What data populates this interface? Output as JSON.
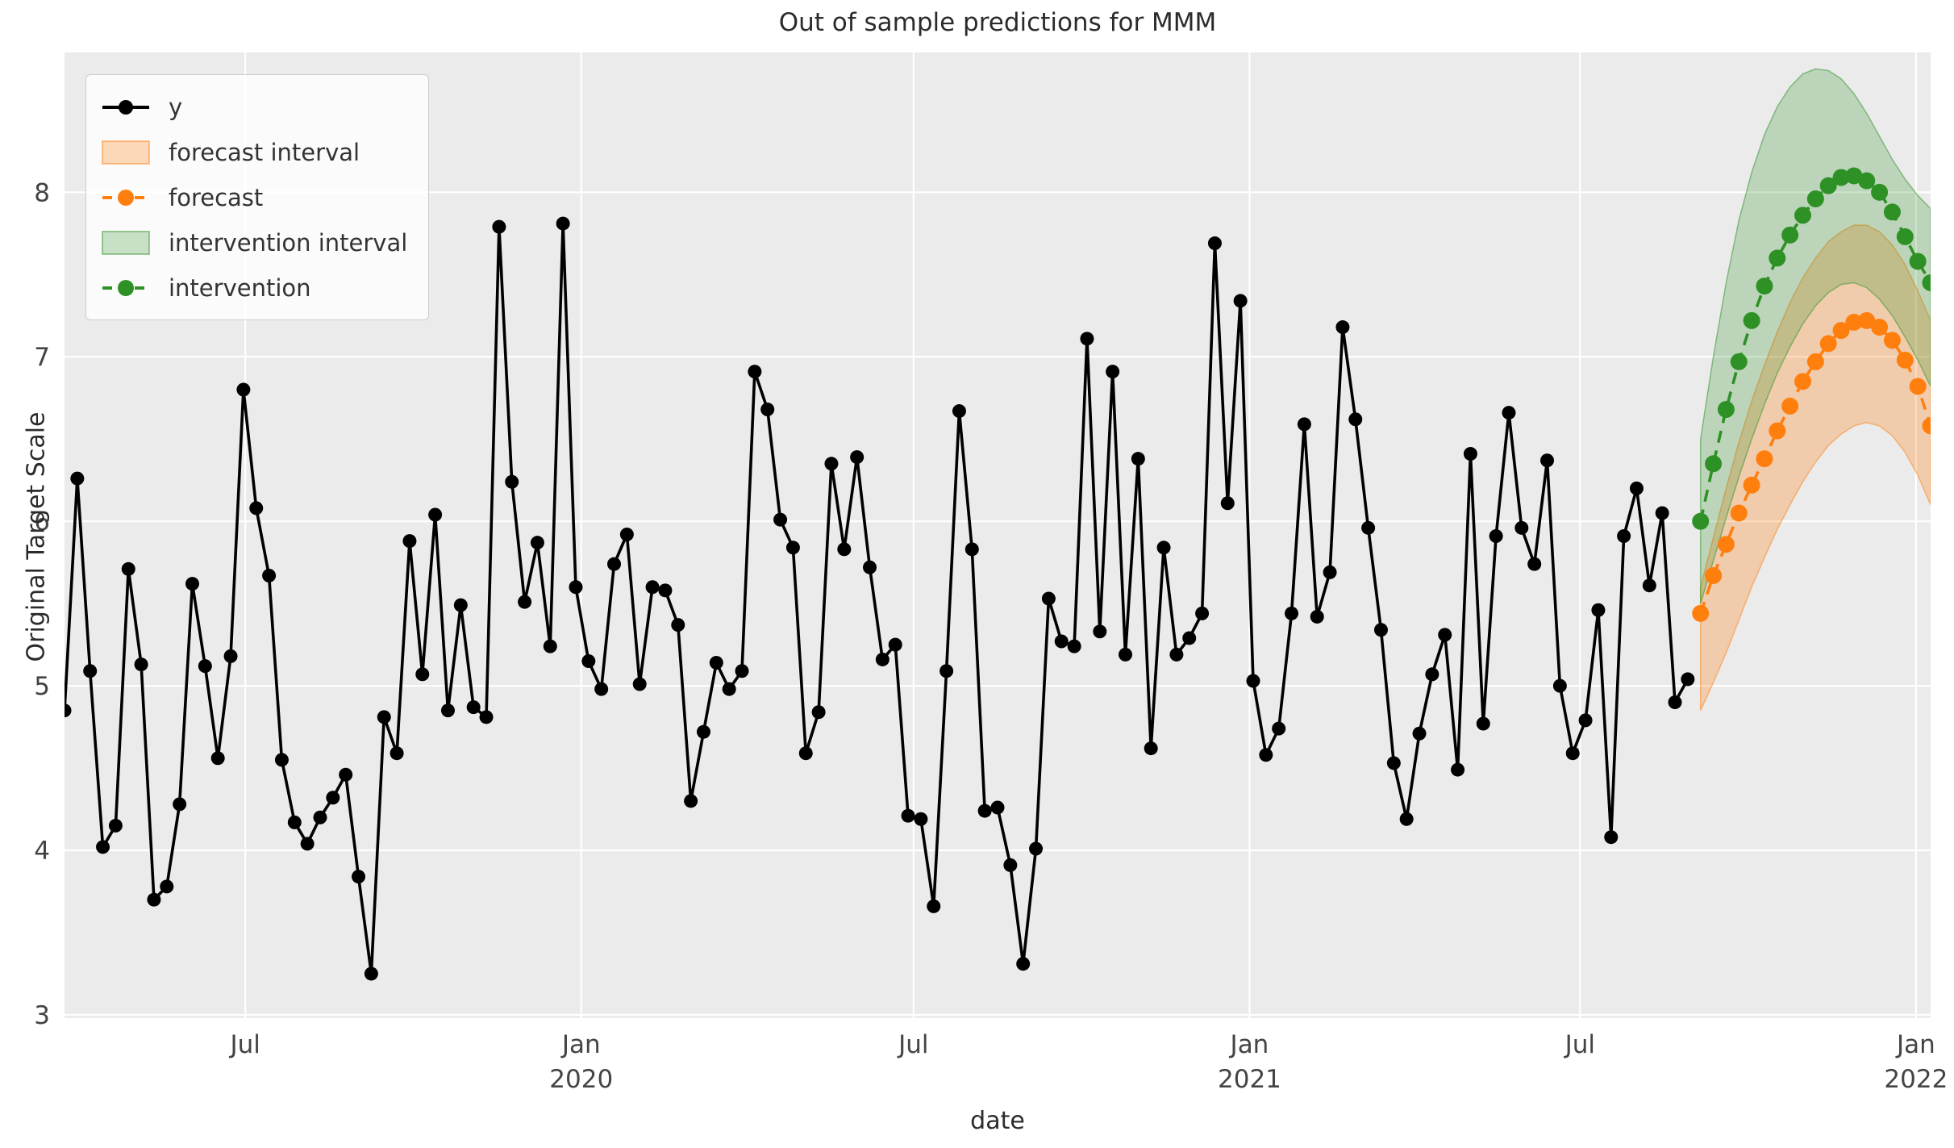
{
  "title": "Out of sample predictions for MMM",
  "axes": {
    "xlabel": "date",
    "ylabel": "Original Target Scale",
    "y_ticks": [
      "3",
      "4",
      "5",
      "6",
      "7",
      "8"
    ],
    "x_ticks": [
      {
        "date": "2019-07-01",
        "label": "Jul",
        "year": ""
      },
      {
        "date": "2020-01-01",
        "label": "Jan",
        "year": "2020"
      },
      {
        "date": "2020-07-01",
        "label": "Jul",
        "year": ""
      },
      {
        "date": "2021-01-01",
        "label": "Jan",
        "year": "2021"
      },
      {
        "date": "2021-07-01",
        "label": "Jul",
        "year": ""
      },
      {
        "date": "2022-01-01",
        "label": "Jan",
        "year": "2022"
      }
    ]
  },
  "legend": [
    {
      "label": "y",
      "swatch": "black-line-marker-swatch"
    },
    {
      "label": "forecast interval",
      "swatch": "orange-band-swatch"
    },
    {
      "label": "forecast",
      "swatch": "orange-dashed-marker-swatch"
    },
    {
      "label": "intervention interval",
      "swatch": "green-band-swatch"
    },
    {
      "label": "intervention",
      "swatch": "green-dashed-marker-swatch"
    }
  ],
  "colors": {
    "background": "#ebebeb",
    "gridline": "#ffffff",
    "y_series": "#000000",
    "forecast": "#ff7f0e",
    "forecast_band": "rgba(255,127,14,0.28)",
    "intervention": "#2e9125",
    "intervention_band": "rgba(46,145,37,0.25)",
    "text": "#2b2b2b",
    "tick_text": "#444444"
  },
  "chart_data": {
    "type": "line",
    "title": "Out of sample predictions for MMM",
    "xlabel": "date",
    "ylabel": "Original Target Scale",
    "grid": true,
    "legend_position": "upper left",
    "ylim": [
      2.98,
      8.85
    ],
    "xlim": [
      "2019-03-24",
      "2022-01-09"
    ],
    "freq_days": 7,
    "series": [
      {
        "name": "y",
        "style": "solid-markers",
        "start_date": "2019-03-24",
        "values": [
          4.85,
          6.26,
          5.09,
          4.02,
          4.15,
          5.71,
          5.13,
          3.7,
          3.78,
          4.28,
          5.62,
          5.12,
          4.56,
          5.18,
          6.8,
          6.08,
          5.67,
          4.55,
          4.17,
          4.04,
          4.2,
          4.32,
          4.46,
          3.84,
          3.25,
          4.81,
          4.59,
          5.88,
          5.07,
          6.04,
          4.85,
          5.49,
          4.87,
          4.81,
          7.79,
          6.24,
          5.51,
          5.87,
          5.24,
          7.81,
          5.6,
          5.15,
          4.98,
          5.74,
          5.92,
          5.01,
          5.6,
          5.58,
          5.37,
          4.3,
          4.72,
          5.14,
          4.98,
          5.09,
          6.91,
          6.68,
          6.01,
          5.84,
          4.59,
          4.84,
          6.35,
          5.83,
          6.39,
          5.72,
          5.16,
          5.25,
          4.21,
          4.19,
          3.66,
          5.09,
          6.67,
          5.83,
          4.24,
          4.26,
          3.91,
          3.31,
          4.01,
          5.53,
          5.27,
          5.24,
          7.11,
          5.33,
          6.91,
          5.19,
          6.38,
          4.62,
          5.84,
          5.19,
          5.29,
          5.44,
          7.69,
          6.11,
          7.34,
          5.03,
          4.58,
          4.74,
          5.44,
          6.59,
          5.42,
          5.69,
          7.18,
          6.62,
          5.96,
          5.34,
          4.53,
          4.19,
          4.71,
          5.07,
          5.31,
          4.49,
          6.41,
          4.77,
          5.91,
          6.66,
          5.96,
          5.74,
          6.37,
          5.0,
          4.59,
          4.79,
          5.46,
          4.08,
          5.91,
          6.2,
          5.61,
          6.05,
          4.9,
          5.04
        ]
      },
      {
        "name": "forecast",
        "style": "dashed-markers",
        "start_date": "2021-09-05",
        "values": [
          5.44,
          5.67,
          5.86,
          6.05,
          6.22,
          6.38,
          6.55,
          6.7,
          6.85,
          6.97,
          7.08,
          7.16,
          7.21,
          7.22,
          7.18,
          7.1,
          6.98,
          6.82,
          6.58
        ]
      },
      {
        "name": "intervention",
        "style": "dashed-markers",
        "start_date": "2021-09-05",
        "values": [
          6.0,
          6.35,
          6.68,
          6.97,
          7.22,
          7.43,
          7.6,
          7.74,
          7.86,
          7.96,
          8.04,
          8.09,
          8.1,
          8.07,
          8.0,
          7.88,
          7.73,
          7.58,
          7.45
        ]
      }
    ],
    "bands": [
      {
        "name": "forecast interval",
        "start_date": "2021-09-05",
        "upper": [
          5.6,
          5.9,
          6.2,
          6.48,
          6.73,
          6.95,
          7.15,
          7.33,
          7.48,
          7.6,
          7.7,
          7.76,
          7.8,
          7.8,
          7.76,
          7.68,
          7.56,
          7.4,
          7.22
        ],
        "lower": [
          4.85,
          5.02,
          5.2,
          5.4,
          5.6,
          5.78,
          5.95,
          6.1,
          6.24,
          6.36,
          6.46,
          6.53,
          6.58,
          6.6,
          6.58,
          6.52,
          6.42,
          6.28,
          6.1
        ]
      },
      {
        "name": "intervention interval",
        "start_date": "2021-09-05",
        "upper": [
          6.5,
          7.0,
          7.45,
          7.83,
          8.12,
          8.35,
          8.52,
          8.64,
          8.72,
          8.75,
          8.74,
          8.69,
          8.6,
          8.48,
          8.34,
          8.2,
          8.08,
          7.98,
          7.9
        ],
        "lower": [
          5.5,
          5.76,
          6.02,
          6.27,
          6.5,
          6.71,
          6.9,
          7.06,
          7.2,
          7.31,
          7.39,
          7.44,
          7.45,
          7.42,
          7.35,
          7.25,
          7.12,
          6.98,
          6.82
        ]
      }
    ]
  }
}
